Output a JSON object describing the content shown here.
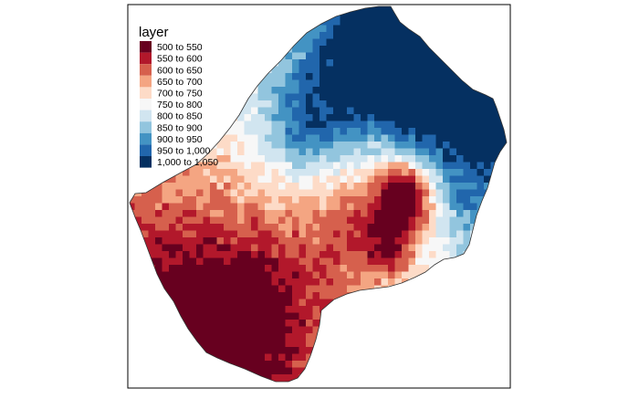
{
  "map": {
    "legend": {
      "title": "layer",
      "items": [
        {
          "label": "500 to 550",
          "color": "#67001f"
        },
        {
          "label": "550 to 600",
          "color": "#b2182b"
        },
        {
          "label": "600 to 650",
          "color": "#d6604d"
        },
        {
          "label": "650 to 700",
          "color": "#f4a582"
        },
        {
          "label": "700 to 750",
          "color": "#fddbc7"
        },
        {
          "label": "750 to 800",
          "color": "#f7f7f7"
        },
        {
          "label": "800 to 850",
          "color": "#d1e5f0"
        },
        {
          "label": "850 to 900",
          "color": "#92c5de"
        },
        {
          "label": "900 to 950",
          "color": "#4393c3"
        },
        {
          "label": "950 to 1,000",
          "color": "#2166ac"
        },
        {
          "label": "1,000 to 1,050",
          "color": "#053061"
        }
      ]
    },
    "frame_color": "#000000",
    "background_color": "#ffffff"
  }
}
